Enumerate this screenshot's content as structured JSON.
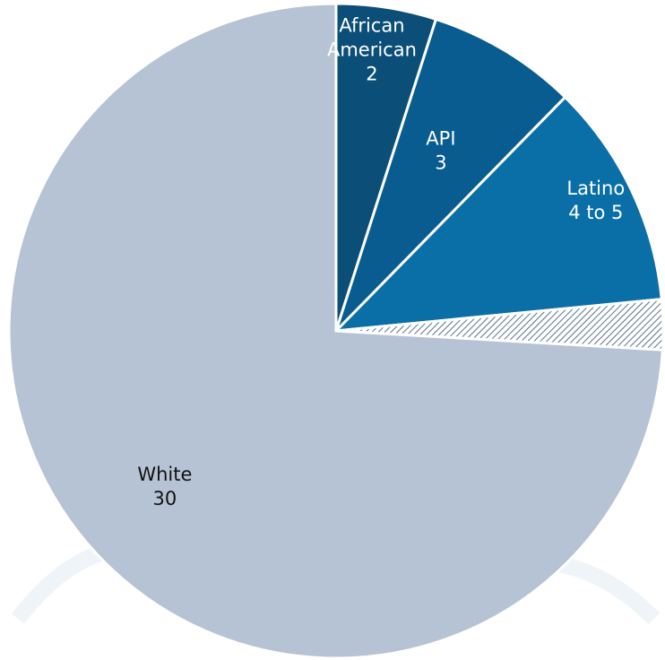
{
  "chart_data": {
    "type": "pie",
    "title": "",
    "slices": [
      {
        "label_line1": "African",
        "label_line2": "American",
        "value_text": "2",
        "value": 2,
        "color": "#0B4E77",
        "text_color": "#ffffff"
      },
      {
        "label_line1": "API",
        "label_line2": "",
        "value_text": "3",
        "value": 3,
        "color": "#095C8F",
        "text_color": "#ffffff"
      },
      {
        "label_line1": "Latino",
        "label_line2": "",
        "value_text": "4 to 5",
        "value": 4.5,
        "color": "#0A6FA6",
        "text_color": "#ffffff"
      },
      {
        "label_line1": "",
        "label_line2": "",
        "value_text": "",
        "value": 1,
        "color": "hatched",
        "text_color": "#ffffff"
      },
      {
        "label_line1": "White",
        "label_line2": "",
        "value_text": "30",
        "value": 30,
        "color": "#B6C3D4",
        "text_color": "#111111"
      }
    ],
    "start_angle_deg": 0,
    "direction": "clockwise",
    "border_color": "#ffffff"
  }
}
